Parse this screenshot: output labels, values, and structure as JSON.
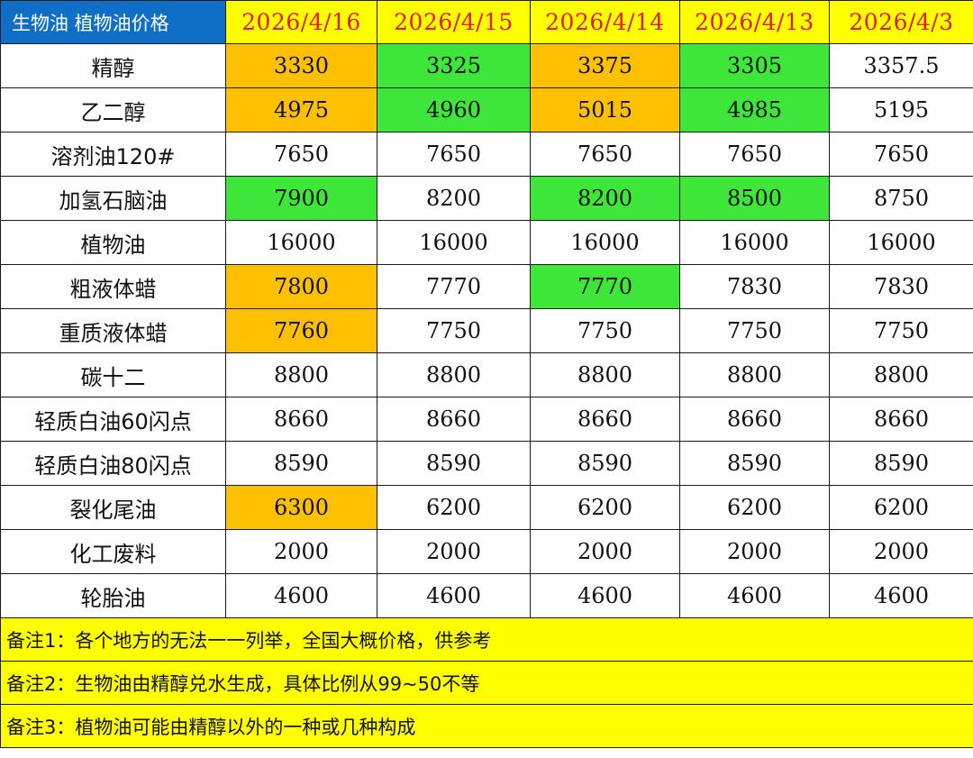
{
  "header": {
    "title": "生物油 植物油价格",
    "dates": [
      "2026/4/16",
      "2026/4/15",
      "2026/4/14",
      "2026/4/13",
      "2026/4/3"
    ]
  },
  "colors": {
    "title_bg": "#0f6fc6",
    "title_text": "#ffffff",
    "date_bg": "#ffff00",
    "date_text": "#e31c1c",
    "up": "#ffc000",
    "down": "#3ee63a",
    "note_bg": "#ffff00"
  },
  "rows": [
    {
      "name": "精醇",
      "values": [
        "3330",
        "3325",
        "3375",
        "3305",
        "3357.5"
      ],
      "fills": [
        "orange",
        "green",
        "orange",
        "green",
        "none"
      ]
    },
    {
      "name": "乙二醇",
      "values": [
        "4975",
        "4960",
        "5015",
        "4985",
        "5195"
      ],
      "fills": [
        "orange",
        "green",
        "orange",
        "green",
        "none"
      ]
    },
    {
      "name": "溶剂油120#",
      "values": [
        "7650",
        "7650",
        "7650",
        "7650",
        "7650"
      ],
      "fills": [
        "none",
        "none",
        "none",
        "none",
        "none"
      ]
    },
    {
      "name": "加氢石脑油",
      "values": [
        "7900",
        "8200",
        "8200",
        "8500",
        "8750"
      ],
      "fills": [
        "green",
        "none",
        "green",
        "green",
        "none"
      ]
    },
    {
      "name": "植物油",
      "values": [
        "16000",
        "16000",
        "16000",
        "16000",
        "16000"
      ],
      "fills": [
        "none",
        "none",
        "none",
        "none",
        "none"
      ]
    },
    {
      "name": "粗液体蜡",
      "values": [
        "7800",
        "7770",
        "7770",
        "7830",
        "7830"
      ],
      "fills": [
        "orange",
        "none",
        "green",
        "none",
        "none"
      ]
    },
    {
      "name": "重质液体蜡",
      "values": [
        "7760",
        "7750",
        "7750",
        "7750",
        "7750"
      ],
      "fills": [
        "orange",
        "none",
        "none",
        "none",
        "none"
      ]
    },
    {
      "name": "碳十二",
      "values": [
        "8800",
        "8800",
        "8800",
        "8800",
        "8800"
      ],
      "fills": [
        "none",
        "none",
        "none",
        "none",
        "none"
      ]
    },
    {
      "name": "轻质白油60闪点",
      "values": [
        "8660",
        "8660",
        "8660",
        "8660",
        "8660"
      ],
      "fills": [
        "none",
        "none",
        "none",
        "none",
        "none"
      ]
    },
    {
      "name": "轻质白油80闪点",
      "values": [
        "8590",
        "8590",
        "8590",
        "8590",
        "8590"
      ],
      "fills": [
        "none",
        "none",
        "none",
        "none",
        "none"
      ]
    },
    {
      "name": "裂化尾油",
      "values": [
        "6300",
        "6200",
        "6200",
        "6200",
        "6200"
      ],
      "fills": [
        "orange",
        "none",
        "none",
        "none",
        "none"
      ]
    },
    {
      "name": "化工废料",
      "values": [
        "2000",
        "2000",
        "2000",
        "2000",
        "2000"
      ],
      "fills": [
        "none",
        "none",
        "none",
        "none",
        "none"
      ]
    },
    {
      "name": "轮胎油",
      "values": [
        "4600",
        "4600",
        "4600",
        "4600",
        "4600"
      ],
      "fills": [
        "none",
        "none",
        "none",
        "none",
        "none"
      ]
    }
  ],
  "notes": [
    "备注1：各个地方的无法一一列举，全国大概价格，供参考",
    "备注2：生物油由精醇兑水生成，具体比例从99~50不等",
    "备注3：植物油可能由精醇以外的一种或几种构成"
  ]
}
